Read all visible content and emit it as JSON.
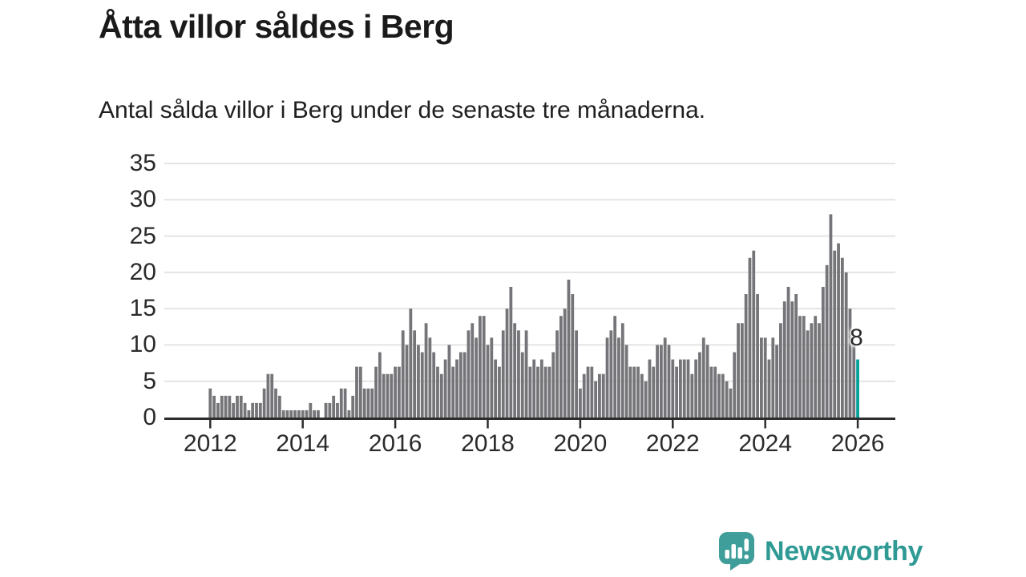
{
  "header": {
    "title": "Åtta villor såldes i Berg",
    "subtitle": "Antal sålda villor i Berg under de senaste tre månaderna."
  },
  "chart_data": {
    "type": "bar",
    "title": "Åtta villor såldes i Berg",
    "subtitle": "Antal sålda villor i Berg under de senaste tre månaderna.",
    "frequency": "monthly",
    "x_start": "2012-01",
    "x_end": "2026-01",
    "values_by_year": {
      "2012": [
        4,
        3,
        2,
        3,
        3,
        3,
        2,
        3,
        3,
        2,
        1,
        2
      ],
      "2013": [
        2,
        2,
        4,
        6,
        6,
        4,
        3,
        1,
        1,
        1,
        1,
        1
      ],
      "2014": [
        1,
        1,
        2,
        1,
        1,
        0,
        2,
        2,
        3,
        2,
        4,
        4
      ],
      "2015": [
        1,
        3,
        7,
        7,
        4,
        4,
        4,
        7,
        9,
        6,
        6,
        6
      ],
      "2016": [
        7,
        7,
        12,
        10,
        15,
        12,
        10,
        9,
        13,
        11,
        9,
        7
      ],
      "2017": [
        6,
        8,
        10,
        7,
        8,
        9,
        9,
        12,
        13,
        11,
        14,
        14
      ],
      "2018": [
        10,
        11,
        8,
        7,
        12,
        15,
        18,
        13,
        12,
        9,
        12,
        7
      ],
      "2019": [
        8,
        7,
        8,
        7,
        7,
        9,
        12,
        14,
        15,
        19,
        17,
        12
      ],
      "2020": [
        4,
        6,
        7,
        7,
        5,
        6,
        6,
        11,
        12,
        14,
        11,
        13
      ],
      "2021": [
        10,
        7,
        7,
        7,
        6,
        5,
        8,
        7,
        10,
        10,
        11,
        10
      ],
      "2022": [
        8,
        7,
        8,
        8,
        8,
        6,
        8,
        9,
        11,
        10,
        7,
        7
      ],
      "2023": [
        6,
        6,
        5,
        4,
        9,
        13,
        13,
        17,
        22,
        23,
        17,
        11
      ],
      "2024": [
        11,
        8,
        11,
        10,
        13,
        16,
        18,
        16,
        17,
        14,
        14,
        12
      ],
      "2025": [
        13,
        14,
        13,
        18,
        21,
        28,
        23,
        24,
        22,
        20,
        15,
        10
      ],
      "2026": [
        8
      ]
    },
    "highlight": {
      "position": "last",
      "value": 8,
      "label": "8",
      "color": "#00a19b"
    },
    "bar_color": "#757579",
    "ylim": [
      0,
      35
    ],
    "yticks": [
      0,
      5,
      10,
      15,
      20,
      25,
      30,
      35
    ],
    "xticks": [
      2012,
      2014,
      2016,
      2018,
      2020,
      2022,
      2024,
      2026
    ],
    "grid": "horizontal",
    "legend": "none"
  },
  "annotation": {
    "last_value_label": "8"
  },
  "branding": {
    "name": "Newsworthy",
    "icon": "speech-bubble-bar-chart",
    "color": "#2f9a94",
    "icon_color": "#3f9e99"
  },
  "colors": {
    "background": "#ffffff",
    "gridline": "#e4e4e4",
    "axis": "#2d2d2d",
    "text": "#1f1f1f"
  }
}
